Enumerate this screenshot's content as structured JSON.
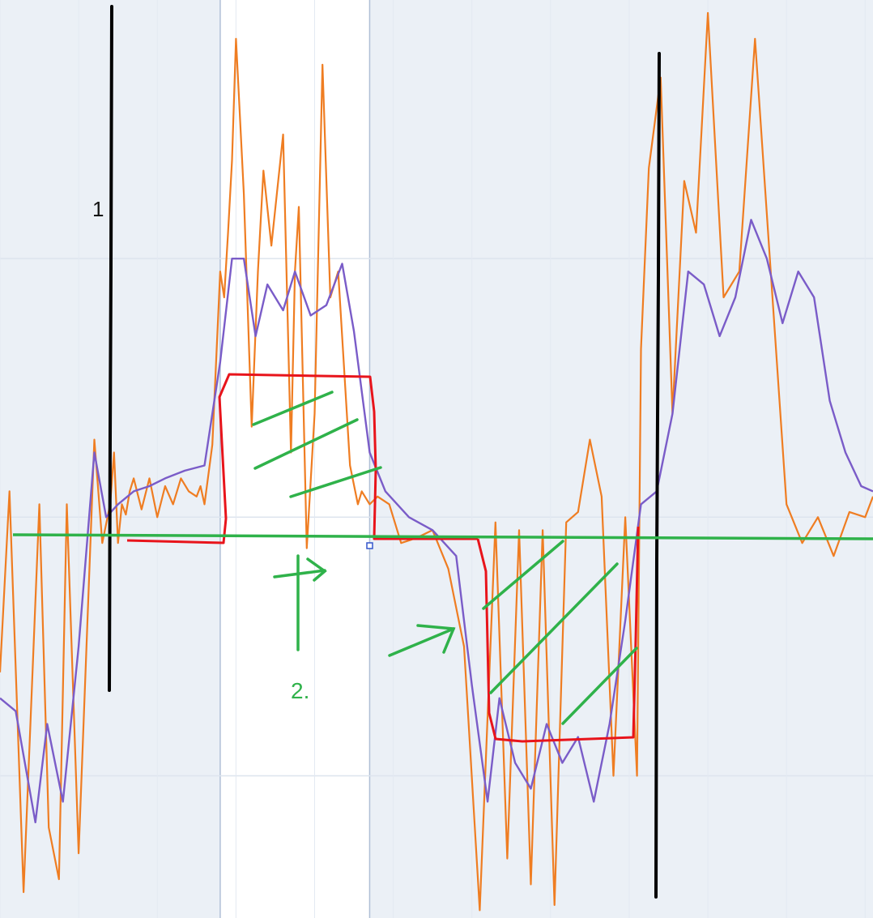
{
  "chart_data": {
    "type": "line",
    "title": "",
    "xlabel": "",
    "ylabel": "",
    "grid": true,
    "x_range": [
      0,
      11.1
    ],
    "ylim": [
      -1.55,
      2.0
    ],
    "yticks": [
      1,
      0,
      -1
    ],
    "highlight_band": [
      2.8,
      4.7
    ],
    "series": [
      {
        "color": "#ef7d22",
        "x": [
          0.0,
          0.12,
          0.3,
          0.5,
          0.62,
          0.75,
          0.85,
          1.0,
          1.2,
          1.3,
          1.4,
          1.45,
          1.5,
          1.55,
          1.6,
          1.65,
          1.7,
          1.8,
          1.9,
          2.0,
          2.1,
          2.2,
          2.3,
          2.4,
          2.5,
          2.55,
          2.6,
          2.7,
          2.8,
          2.85,
          2.9,
          2.95,
          3.0,
          3.1,
          3.2,
          3.28,
          3.35,
          3.45,
          3.6,
          3.7,
          3.75,
          3.8,
          3.9,
          4.0,
          4.1,
          4.2,
          4.3,
          4.45,
          4.55,
          4.6,
          4.7,
          4.8,
          4.95,
          5.1,
          5.3,
          5.5,
          5.7,
          5.9,
          6.1,
          6.3,
          6.45,
          6.6,
          6.75,
          6.9,
          7.05,
          7.2,
          7.35,
          7.5,
          7.65,
          7.8,
          7.95,
          8.1,
          8.15,
          8.25,
          8.4,
          8.55,
          8.7,
          8.85,
          9.0,
          9.2,
          9.4,
          9.6,
          9.8,
          10.0,
          10.2,
          10.4,
          10.6,
          10.8,
          11.0,
          11.1
        ],
        "y": [
          -0.6,
          0.1,
          -1.45,
          0.05,
          -1.2,
          -1.4,
          0.05,
          -1.3,
          0.3,
          -0.1,
          0.05,
          0.25,
          -0.1,
          0.05,
          0.01,
          0.1,
          0.15,
          0.03,
          0.15,
          0.0,
          0.12,
          0.05,
          0.15,
          0.1,
          0.08,
          0.12,
          0.05,
          0.28,
          0.95,
          0.85,
          1.1,
          1.38,
          1.85,
          1.25,
          0.35,
          0.95,
          1.34,
          1.05,
          1.48,
          0.25,
          0.95,
          1.2,
          -0.12,
          0.4,
          1.75,
          0.85,
          0.95,
          0.2,
          0.05,
          0.1,
          0.05,
          0.08,
          0.05,
          -0.1,
          -0.08,
          -0.05,
          -0.2,
          -0.5,
          -1.52,
          -0.02,
          -1.32,
          -0.05,
          -1.42,
          -0.05,
          -1.5,
          -0.02,
          0.02,
          0.3,
          0.08,
          -1.0,
          0.0,
          -1.0,
          0.65,
          1.35,
          1.7,
          0.4,
          1.3,
          1.1,
          1.95,
          0.85,
          0.95,
          1.85,
          0.95,
          0.05,
          -0.1,
          0.0,
          -0.15,
          0.02,
          0.0,
          0.08
        ]
      },
      {
        "color": "#7a5cc8",
        "x": [
          0.0,
          0.2,
          0.45,
          0.6,
          0.8,
          1.0,
          1.2,
          1.35,
          1.5,
          1.7,
          1.9,
          2.1,
          2.35,
          2.6,
          2.8,
          2.95,
          3.1,
          3.25,
          3.4,
          3.6,
          3.75,
          3.95,
          4.15,
          4.35,
          4.5,
          4.7,
          4.9,
          5.2,
          5.5,
          5.8,
          6.0,
          6.2,
          6.35,
          6.55,
          6.75,
          6.95,
          7.15,
          7.35,
          7.55,
          7.75,
          7.95,
          8.15,
          8.35,
          8.55,
          8.75,
          8.95,
          9.15,
          9.35,
          9.55,
          9.75,
          9.95,
          10.15,
          10.35,
          10.55,
          10.75,
          10.95,
          11.1
        ],
        "y": [
          -0.7,
          -0.75,
          -1.18,
          -0.8,
          -1.1,
          -0.5,
          0.25,
          0.0,
          0.05,
          0.1,
          0.12,
          0.15,
          0.18,
          0.2,
          0.6,
          1.0,
          1.0,
          0.7,
          0.9,
          0.8,
          0.95,
          0.78,
          0.82,
          0.98,
          0.72,
          0.25,
          0.1,
          0.0,
          -0.05,
          -0.15,
          -0.65,
          -1.1,
          -0.7,
          -0.95,
          -1.05,
          -0.8,
          -0.95,
          -0.85,
          -1.1,
          -0.8,
          -0.4,
          0.05,
          0.1,
          0.4,
          0.95,
          0.9,
          0.7,
          0.85,
          1.15,
          1.0,
          0.75,
          0.95,
          0.85,
          0.45,
          0.25,
          0.12,
          0.1
        ]
      }
    ]
  },
  "annotations": {
    "label_one": "1",
    "label_two": "2.",
    "black_lines_color": "#000000",
    "red_outline_color": "#e8141b",
    "green_color": "#2fb24a"
  }
}
